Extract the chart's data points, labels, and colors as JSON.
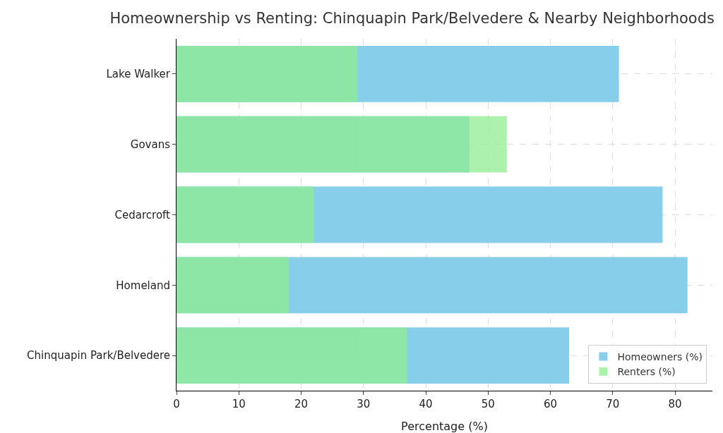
{
  "chart_data": {
    "type": "bar",
    "orientation": "horizontal",
    "title": "Homeownership vs Renting: Chinquapin Park/Belvedere & Nearby Neighborhoods",
    "xlabel": "Percentage (%)",
    "categories": [
      "Lake Walker",
      "Govans",
      "Cedarcroft",
      "Homeland",
      "Chinquapin Park/Belvedere"
    ],
    "series": [
      {
        "name": "Homeowners (%)",
        "color": "#87ceeb",
        "values": [
          71,
          47,
          78,
          82,
          63
        ]
      },
      {
        "name": "Renters (%)",
        "color": "#90ee90",
        "values": [
          29,
          53,
          22,
          18,
          37
        ]
      }
    ],
    "xlim": [
      0,
      86
    ],
    "xticks": [
      0,
      10,
      20,
      30,
      40,
      50,
      60,
      70,
      80
    ],
    "grid": true,
    "legend": "bottom right"
  }
}
